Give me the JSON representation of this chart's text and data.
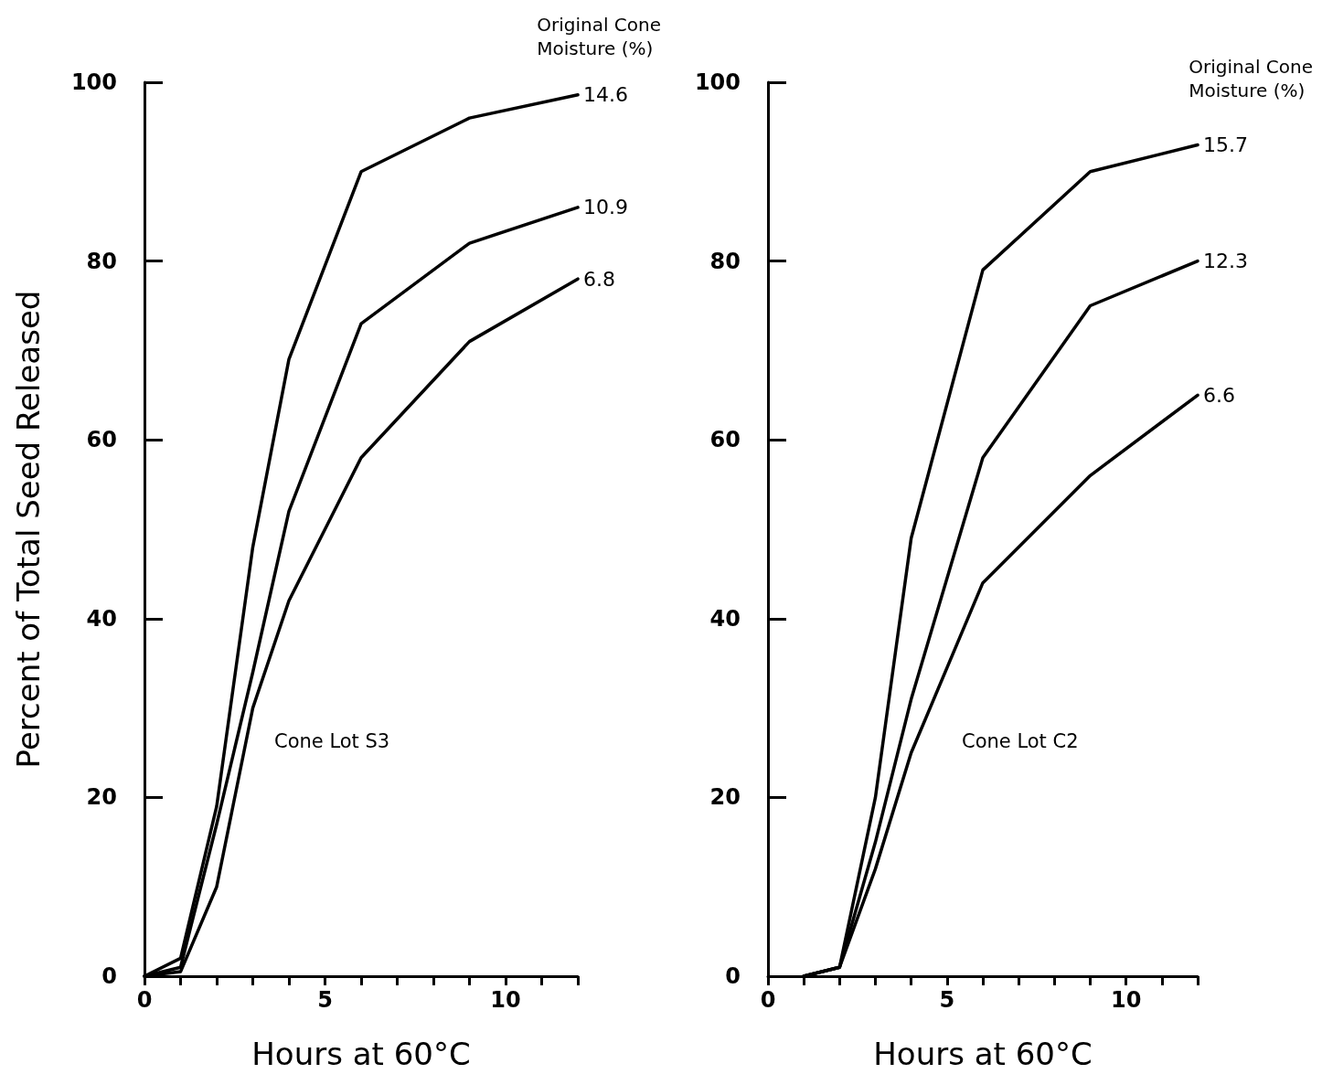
{
  "chart_data": [
    {
      "type": "line",
      "xlabel": "Hours at 60°C",
      "ylabel": "Percent of Total Seed Released",
      "legend_title": "Original Cone Moisture (%)",
      "annotations": [
        "Cone Lot S3"
      ],
      "xlim": [
        0,
        12
      ],
      "ylim": [
        0,
        100
      ],
      "xticks": [
        0,
        {
          "value": 1,
          "label": null
        },
        {
          "value": 2,
          "label": null
        },
        {
          "value": 3,
          "label": null
        },
        {
          "value": 4,
          "label": null
        },
        5,
        {
          "value": 6,
          "label": null
        },
        {
          "value": 7,
          "label": null
        },
        {
          "value": 8,
          "label": null
        },
        {
          "value": 9,
          "label": null
        },
        10,
        {
          "value": 11,
          "label": null
        },
        {
          "value": 12,
          "label": null
        }
      ],
      "yticks": [
        0,
        20,
        40,
        60,
        80,
        100
      ],
      "grid": false,
      "legend": false,
      "marker": "none",
      "line_style": "solid",
      "x": [
        0,
        1,
        2,
        3,
        4,
        6,
        9,
        12
      ],
      "series": [
        {
          "name": "14.6",
          "color": "#000000",
          "values": [
            0,
            2,
            19,
            48,
            69,
            90,
            96,
            98.6
          ]
        },
        {
          "name": "10.9",
          "color": "#000000",
          "values": [
            0,
            1,
            17,
            34,
            52,
            73,
            82,
            86
          ]
        },
        {
          "name": "6.8",
          "color": "#000000",
          "values": [
            0,
            0.5,
            10,
            30,
            42,
            58,
            71,
            78
          ]
        }
      ]
    },
    {
      "type": "line",
      "xlabel": "Hours at 60°C",
      "legend_title": "Original Cone Moisture (%)",
      "annotations": [
        "Cone Lot C2"
      ],
      "xlim": [
        0,
        12
      ],
      "ylim": [
        0,
        100
      ],
      "xticks": [
        0,
        {
          "value": 1,
          "label": null
        },
        {
          "value": 2,
          "label": null
        },
        {
          "value": 3,
          "label": null
        },
        {
          "value": 4,
          "label": null
        },
        5,
        {
          "value": 6,
          "label": null
        },
        {
          "value": 7,
          "label": null
        },
        {
          "value": 8,
          "label": null
        },
        {
          "value": 9,
          "label": null
        },
        10,
        {
          "value": 11,
          "label": null
        },
        {
          "value": 12,
          "label": null
        }
      ],
      "yticks": [
        0,
        20,
        40,
        60,
        80,
        100
      ],
      "grid": false,
      "legend": false,
      "marker": "none",
      "line_style": "solid",
      "x": [
        1,
        2,
        3,
        4,
        6,
        9,
        12
      ],
      "series": [
        {
          "name": "15.7",
          "color": "#000000",
          "values": [
            0,
            1,
            20,
            49,
            79,
            90,
            93
          ]
        },
        {
          "name": "12.3",
          "color": "#000000",
          "values": [
            0,
            1,
            15,
            31,
            58,
            75,
            80
          ]
        },
        {
          "name": "6.6",
          "color": "#000000",
          "values": [
            0,
            1,
            12,
            25,
            44,
            56,
            65
          ]
        }
      ]
    }
  ]
}
